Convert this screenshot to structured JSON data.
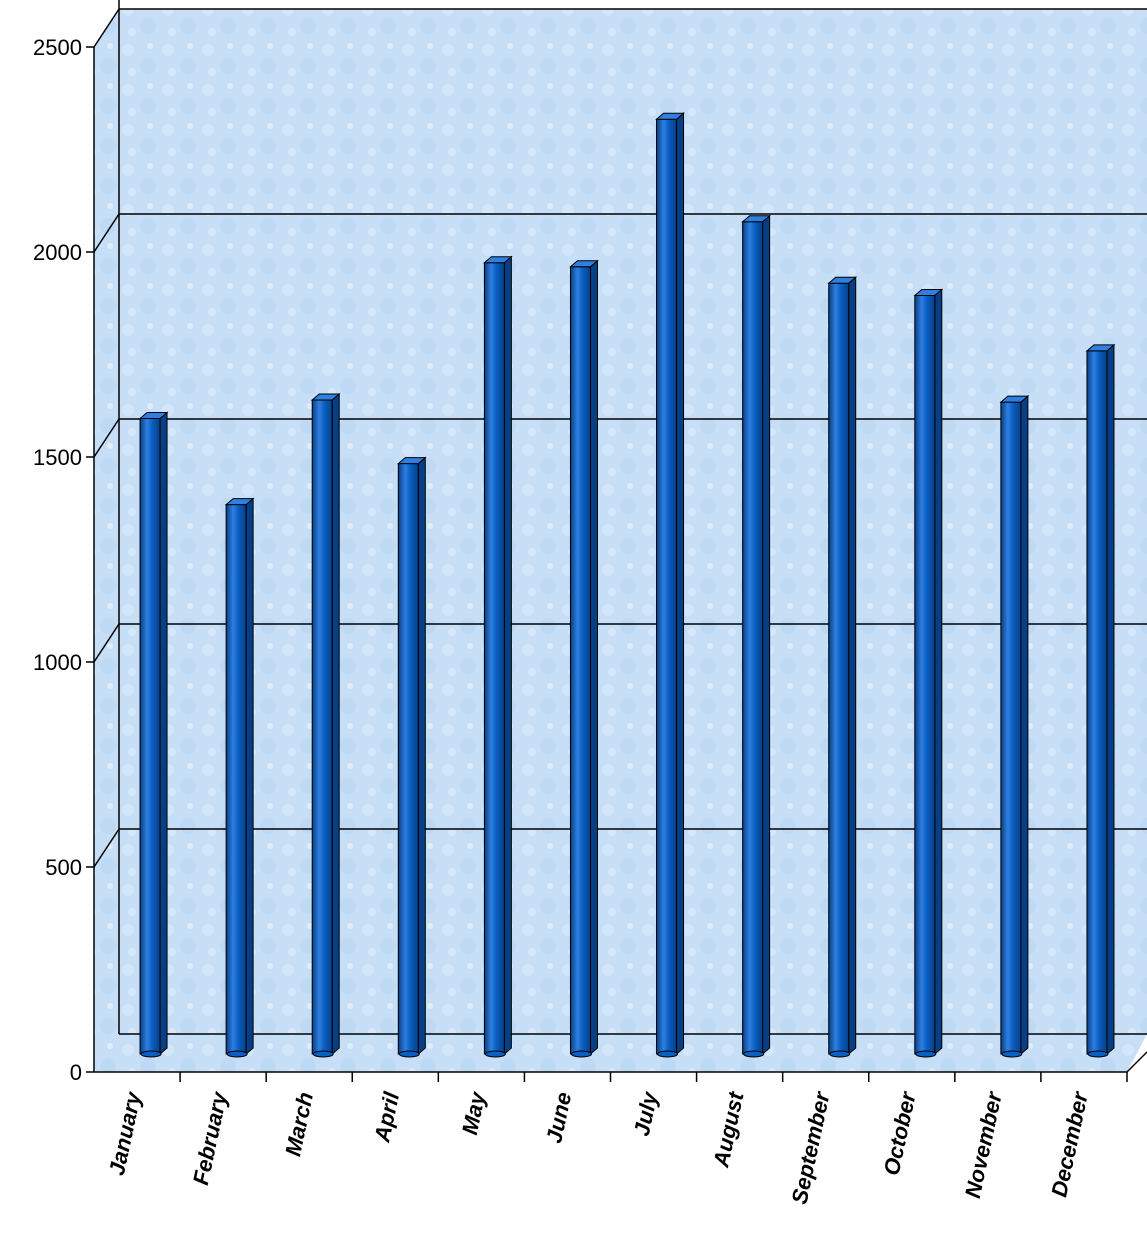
{
  "colors": {
    "bar": "#0a5fc4",
    "bar_highlight": "#2f7fe0",
    "bar_shadow": "#063f86",
    "wall": "#c6dff7",
    "wall_texture": "#dbeafb",
    "gridline": "#000000"
  },
  "chart_data": {
    "type": "bar",
    "style": "3d-cylinder",
    "title": "",
    "xlabel": "",
    "ylabel": "",
    "ylim": [
      0,
      2500
    ],
    "yticks": [
      0,
      500,
      1000,
      1500,
      2000,
      2500
    ],
    "grid": true,
    "legend": "none",
    "categories": [
      "January",
      "February",
      "March",
      "April",
      "May",
      "June",
      "July",
      "August",
      "September",
      "October",
      "November",
      "December"
    ],
    "values": [
      1550,
      1340,
      1595,
      1440,
      1930,
      1920,
      2280,
      2030,
      1880,
      1850,
      1590,
      1715
    ]
  }
}
